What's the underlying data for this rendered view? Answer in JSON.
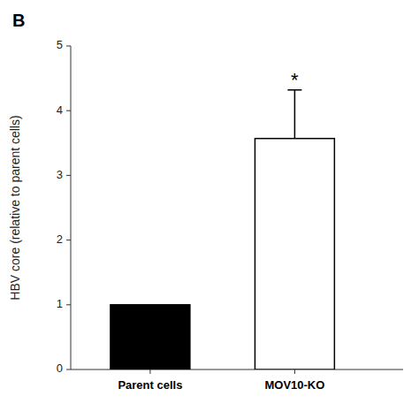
{
  "chart_data": {
    "type": "bar",
    "title": "B",
    "ylabel": "HBV core (relative to parent cells)",
    "categories": [
      "Parent cells",
      "MOV10-KO"
    ],
    "values": [
      1.0,
      3.57
    ],
    "errors": [
      0.0,
      0.75
    ],
    "colors": [
      "#000000",
      "#ffffff"
    ],
    "ylim": [
      0,
      5
    ],
    "yticks": [
      0,
      1,
      2,
      3,
      4,
      5
    ],
    "grid": false,
    "annotations": [
      {
        "text": "*",
        "category": "MOV10-KO"
      }
    ]
  }
}
